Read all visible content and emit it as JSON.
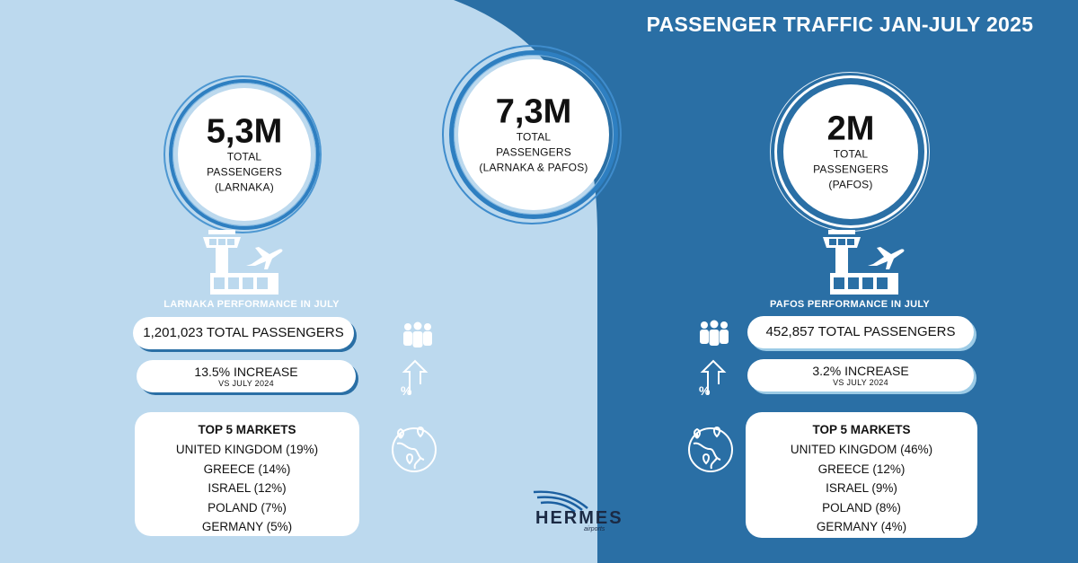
{
  "title": "PASSENGER TRAFFIC JAN-JULY 2025",
  "colors": {
    "light_bg": "#bcd9ee",
    "dark_bg": "#2a6fa5",
    "ring": "#2e7fc1",
    "white": "#ffffff"
  },
  "circles": {
    "larnaka": {
      "value": "5,3M",
      "line1": "TOTAL",
      "line2": "PASSENGERS",
      "line3": "(LARNAKA)"
    },
    "total": {
      "value": "7,3M",
      "line1": "TOTAL",
      "line2": "PASSENGERS",
      "line3": "(LARNAKA & PAFOS)"
    },
    "pafos": {
      "value": "2M",
      "line1": "TOTAL",
      "line2": "PASSENGERS",
      "line3": "(PAFOS)"
    }
  },
  "larnaka": {
    "performance_label": "LARNAKA PERFORMANCE IN JULY",
    "passengers": "1,201,023 TOTAL PASSENGERS",
    "increase": "13.5% INCREASE",
    "increase_sub": "VS JULY 2024",
    "markets_title": "TOP 5 MARKETS",
    "markets": [
      "UNITED KINGDOM (19%)",
      "GREECE (14%)",
      "ISRAEL (12%)",
      "POLAND (7%)",
      "GERMANY (5%)"
    ]
  },
  "pafos": {
    "performance_label": "PAFOS PERFORMANCE IN JULY",
    "passengers": "452,857 TOTAL PASSENGERS",
    "increase": "3.2% INCREASE",
    "increase_sub": "VS JULY 2024",
    "markets_title": "TOP 5 MARKETS",
    "markets": [
      "UNITED KINGDOM (46%)",
      "GREECE (12%)",
      "ISRAEL (9%)",
      "POLAND (8%)",
      "GERMANY (4%)"
    ]
  },
  "icons": [
    "airport-tower-icon",
    "airplane-icon",
    "people-icon",
    "percent-up-icon",
    "globe-icon"
  ],
  "logo": {
    "word": "HERMES",
    "sub": "airports"
  }
}
